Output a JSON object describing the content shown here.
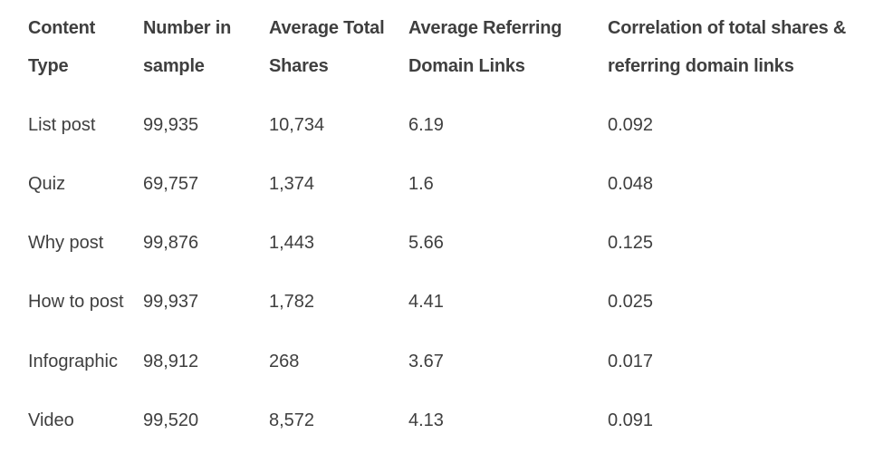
{
  "table": {
    "headers": [
      "Content Type",
      "Number in sample",
      "Average Total Shares",
      "Average Referring Domain Links",
      "Correlation of total shares & referring domain links"
    ],
    "rows": [
      [
        "List post",
        "99,935",
        "10,734",
        "6.19",
        "0.092"
      ],
      [
        "Quiz",
        "69,757",
        "1,374",
        "1.6",
        "0.048"
      ],
      [
        "Why post",
        "99,876",
        "1,443",
        "5.66",
        "0.125"
      ],
      [
        "How to post",
        "99,937",
        "1,782",
        "4.41",
        "0.025"
      ],
      [
        "Infographic",
        "98,912",
        "268",
        "3.67",
        "0.017"
      ],
      [
        "Video",
        "99,520",
        "8,572",
        "4.13",
        "0.091"
      ]
    ]
  }
}
